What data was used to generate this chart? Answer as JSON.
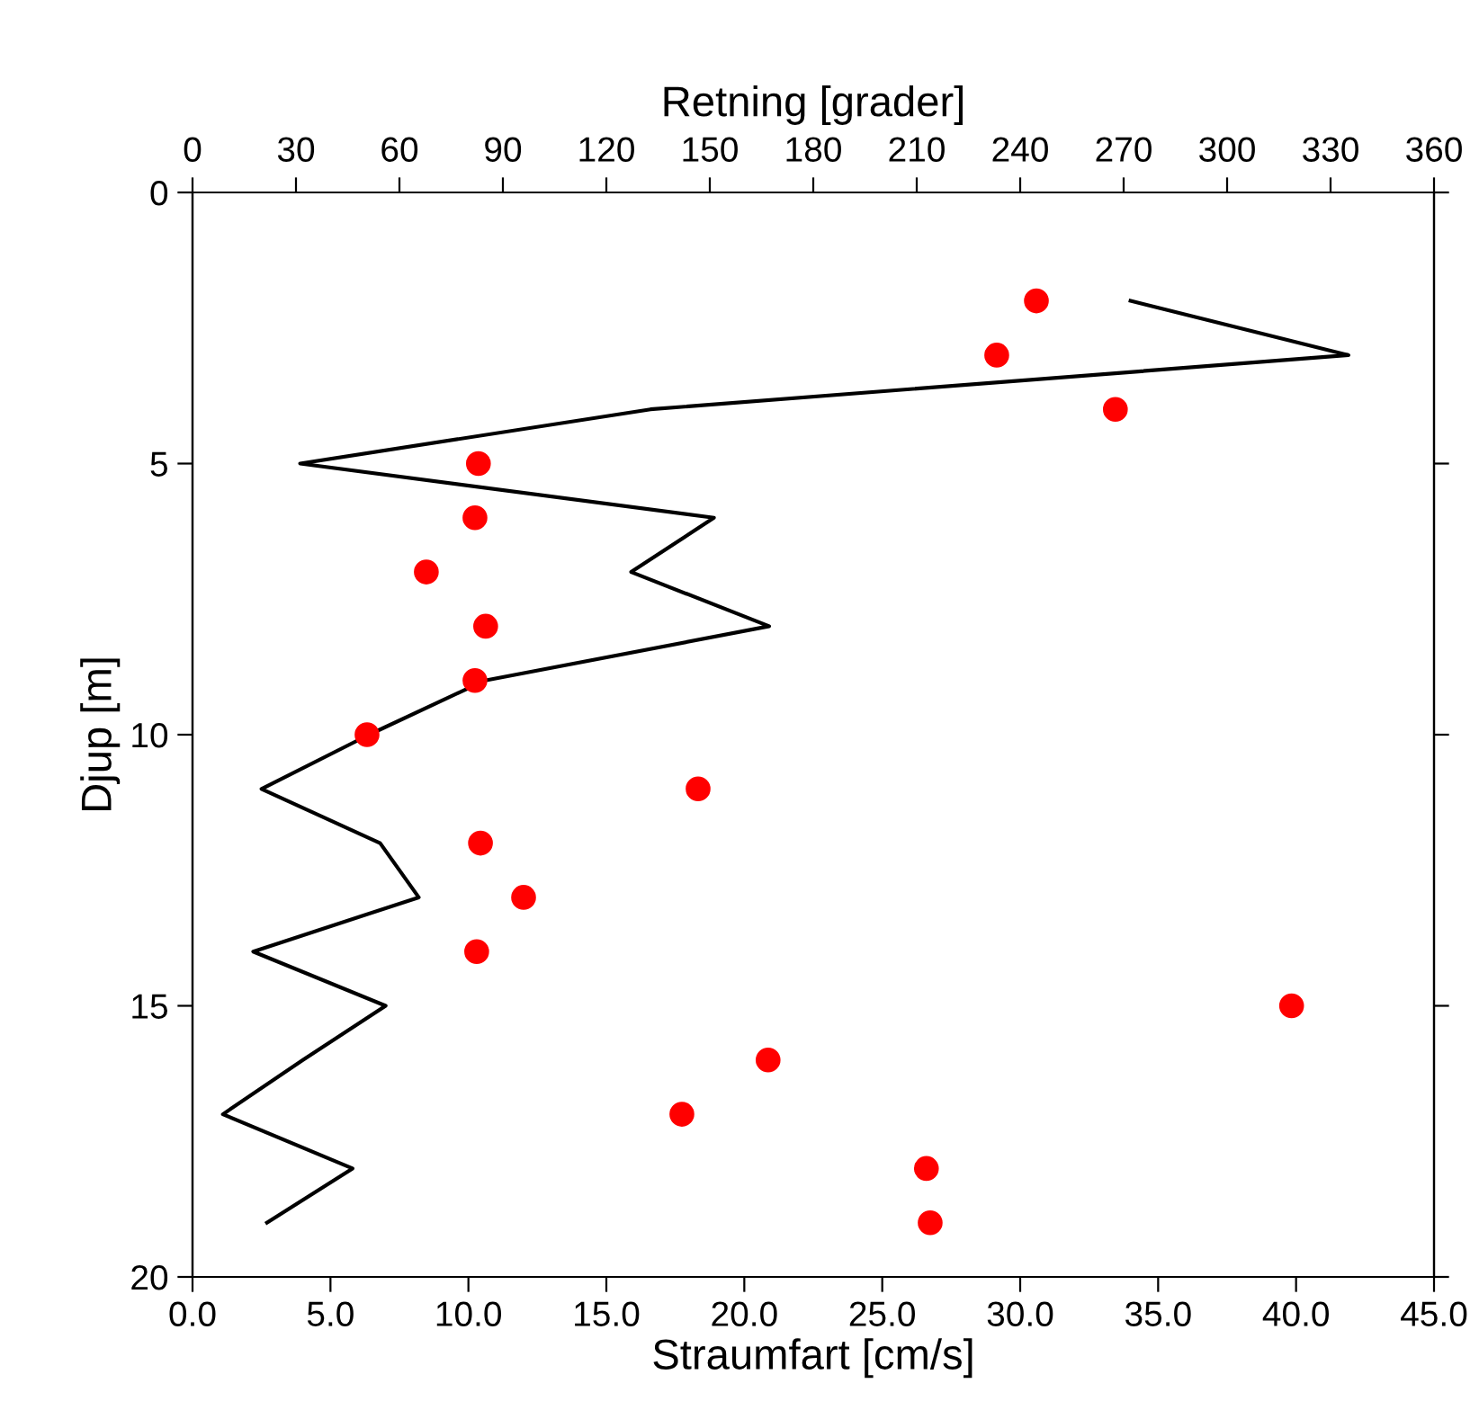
{
  "chart_data": {
    "type": "line",
    "xlabel": "Straumfart [cm/s]",
    "x2label": "Retning [grader]",
    "ylabel": "Djup [m]",
    "xlim": [
      0,
      45
    ],
    "xticks": [
      {
        "value": 0,
        "label": "0.0"
      },
      {
        "value": 5,
        "label": "5.0"
      },
      {
        "value": 10,
        "label": "10.0"
      },
      {
        "value": 15,
        "label": "15.0"
      },
      {
        "value": 20,
        "label": "20.0"
      },
      {
        "value": 25,
        "label": "25.0"
      },
      {
        "value": 30,
        "label": "30.0"
      },
      {
        "value": 35,
        "label": "35.0"
      },
      {
        "value": 40,
        "label": "40.0"
      },
      {
        "value": 45,
        "label": "45.0"
      }
    ],
    "x2lim": [
      0,
      360
    ],
    "x2ticks": [
      0,
      30,
      60,
      90,
      120,
      150,
      180,
      210,
      240,
      270,
      300,
      330,
      360
    ],
    "ylim": [
      20,
      0
    ],
    "yticks": [
      0,
      5,
      10,
      15,
      20
    ],
    "grid": false,
    "legend": false,
    "series": [
      {
        "color": "#000000",
        "marker": "none",
        "line_style": "solid",
        "x": [
          34.0,
          41.9,
          16.6,
          3.9,
          18.9,
          15.9,
          20.9,
          10.6,
          6.4,
          2.5,
          6.8,
          8.2,
          2.2,
          7.0,
          4.0,
          1.1,
          5.8,
          2.7
        ],
        "values": [
          2,
          3,
          4,
          5,
          6,
          7,
          8,
          9,
          10,
          11,
          12,
          13,
          14,
          15,
          16,
          17,
          18,
          19
        ]
      },
      {
        "type": "scatter",
        "axis": "x2",
        "color": "#ff0000",
        "marker": "circle",
        "x": [
          244.7,
          233.2,
          267.6,
          82.9,
          81.9,
          67.8,
          85.0,
          81.9,
          50.6,
          146.6,
          83.5,
          96.0,
          82.4,
          318.7,
          166.9,
          141.9,
          212.8,
          213.9
        ],
        "values": [
          2,
          3,
          4,
          5,
          6,
          7,
          8,
          9,
          10,
          11,
          12,
          13,
          14,
          15,
          16,
          17,
          18,
          19
        ]
      }
    ]
  }
}
